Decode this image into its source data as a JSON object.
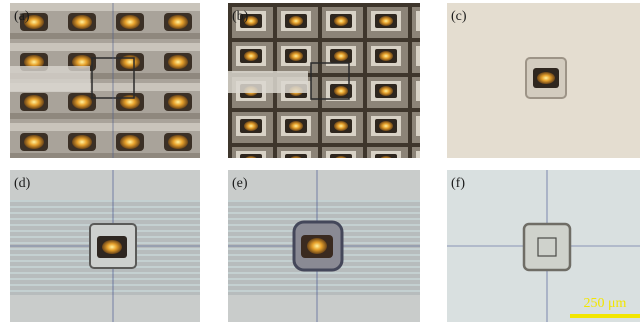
{
  "panels": [
    {
      "label": "(a)"
    },
    {
      "label": "(b)"
    },
    {
      "label": "(c)"
    },
    {
      "label": "(d)"
    },
    {
      "label": "(e)"
    },
    {
      "label": "(f)"
    }
  ],
  "scale_bar": "250 μm"
}
